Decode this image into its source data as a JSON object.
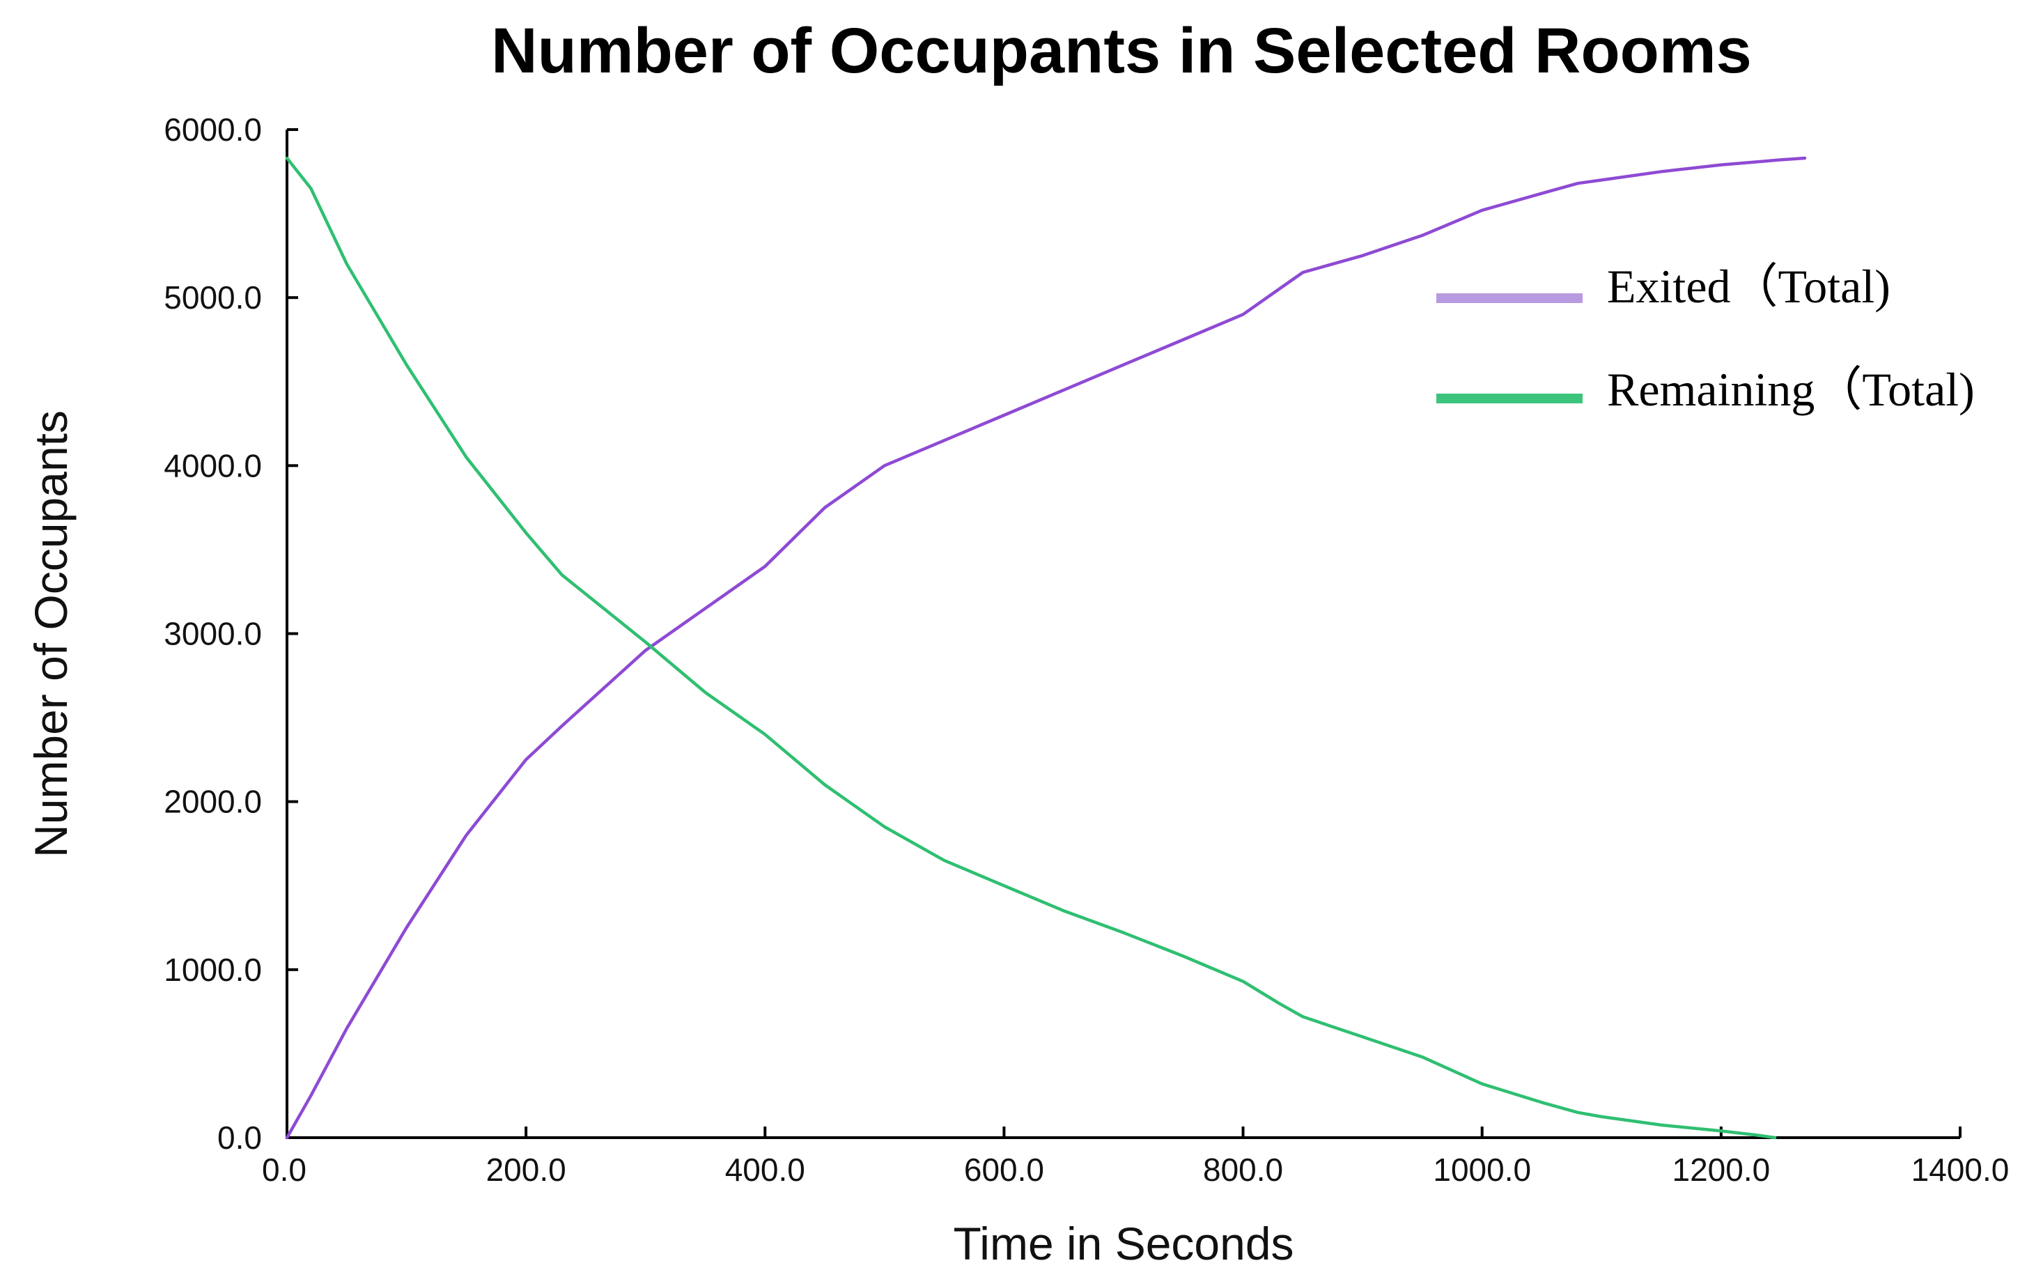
{
  "chart_data": {
    "type": "line",
    "title": "Number of Occupants in Selected Rooms",
    "xlabel": "Time in Seconds",
    "ylabel": "Number of Occupants",
    "xlim": [
      0,
      1400
    ],
    "ylim": [
      0,
      6000
    ],
    "x_ticks": [
      "0.0",
      "200.0",
      "400.0",
      "600.0",
      "800.0",
      "1000.0",
      "1200.0",
      "1400.0"
    ],
    "y_ticks": [
      "0.0",
      "1000.0",
      "2000.0",
      "3000.0",
      "4000.0",
      "5000.0",
      "6000.0"
    ],
    "grid": false,
    "legend_position": "top-right",
    "series": [
      {
        "name": "Exited（Total)",
        "color": "#8e4ad4",
        "legend_color": "#b79ae0",
        "x": [
          0,
          20,
          50,
          100,
          150,
          200,
          230,
          300,
          350,
          400,
          450,
          500,
          550,
          600,
          650,
          700,
          750,
          800,
          830,
          850,
          900,
          950,
          1000,
          1050,
          1080,
          1100,
          1150,
          1200,
          1250,
          1270
        ],
        "y": [
          0,
          250,
          650,
          1250,
          1800,
          2250,
          2450,
          2900,
          3150,
          3400,
          3750,
          4000,
          4150,
          4300,
          4450,
          4600,
          4750,
          4900,
          5050,
          5150,
          5250,
          5370,
          5520,
          5620,
          5680,
          5700,
          5750,
          5790,
          5820,
          5830
        ]
      },
      {
        "name": "Remaining（Total)",
        "color": "#2fbf71",
        "legend_color": "#3cc47c",
        "x": [
          0,
          20,
          50,
          100,
          150,
          200,
          230,
          300,
          350,
          400,
          450,
          500,
          550,
          600,
          650,
          700,
          750,
          800,
          830,
          850,
          900,
          950,
          1000,
          1050,
          1080,
          1100,
          1150,
          1200,
          1230,
          1245
        ],
        "y": [
          5830,
          5650,
          5200,
          4600,
          4050,
          3600,
          3350,
          2950,
          2650,
          2400,
          2100,
          1850,
          1650,
          1500,
          1350,
          1220,
          1080,
          930,
          800,
          720,
          600,
          480,
          320,
          210,
          150,
          125,
          75,
          40,
          15,
          0
        ]
      }
    ]
  }
}
